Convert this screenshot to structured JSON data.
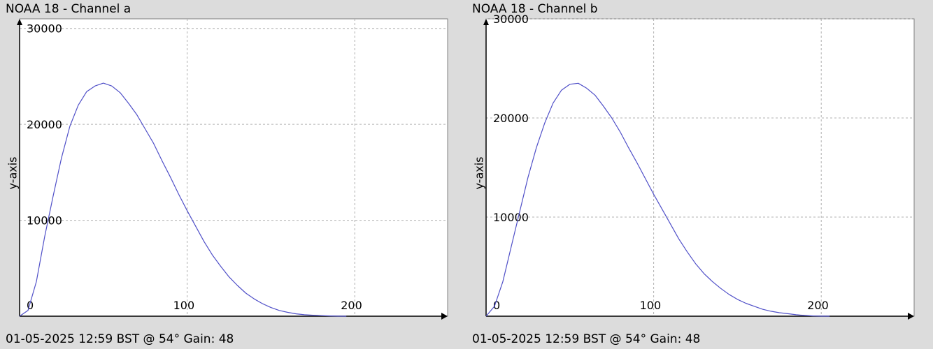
{
  "colors": {
    "background": "#dcdcdc",
    "plot_area": "#ffffff",
    "grid": "#b0b0b0",
    "line": "#5050c8",
    "axis": "#000000"
  },
  "chart_data": [
    {
      "type": "line",
      "title": "NOAA 18 - Channel a",
      "footer": "01-05-2025 12:59 BST @ 54° Gain: 48",
      "xlabel": "",
      "ylabel": "y-axis",
      "xlim": [
        0,
        255
      ],
      "ylim": [
        0,
        31000
      ],
      "x_ticks": [
        0,
        100,
        200
      ],
      "y_ticks": [
        10000,
        20000,
        30000
      ],
      "grid": true,
      "series": [
        {
          "color": "#5050c8",
          "x": [
            0,
            5,
            10,
            15,
            20,
            25,
            30,
            35,
            40,
            45,
            50,
            55,
            60,
            65,
            70,
            75,
            80,
            85,
            90,
            95,
            100,
            105,
            110,
            115,
            120,
            125,
            130,
            135,
            140,
            145,
            150,
            155,
            160,
            165,
            170,
            175,
            180,
            185,
            190,
            195
          ],
          "y": [
            0,
            600,
            3600,
            8300,
            12500,
            16500,
            19800,
            22000,
            23400,
            24000,
            24300,
            24000,
            23300,
            22200,
            21000,
            19500,
            18000,
            16200,
            14500,
            12700,
            11000,
            9400,
            7800,
            6400,
            5200,
            4100,
            3200,
            2400,
            1800,
            1300,
            900,
            600,
            400,
            250,
            150,
            100,
            60,
            30,
            10,
            0
          ]
        }
      ]
    },
    {
      "type": "line",
      "title": "NOAA 18 - Channel b",
      "footer": "01-05-2025 12:59 BST @ 54° Gain: 48",
      "xlabel": "",
      "ylabel": "y-axis",
      "xlim": [
        0,
        255
      ],
      "ylim": [
        0,
        30000
      ],
      "x_ticks": [
        0,
        100,
        200
      ],
      "y_ticks": [
        10000,
        20000,
        30000
      ],
      "grid": true,
      "series": [
        {
          "color": "#5050c8",
          "x": [
            0,
            5,
            10,
            15,
            20,
            25,
            30,
            35,
            40,
            45,
            50,
            55,
            60,
            65,
            70,
            75,
            80,
            85,
            90,
            95,
            100,
            105,
            110,
            115,
            120,
            125,
            130,
            135,
            140,
            145,
            150,
            155,
            160,
            165,
            170,
            175,
            180,
            185,
            190,
            195,
            200,
            205
          ],
          "y": [
            0,
            1000,
            3500,
            7000,
            10500,
            14000,
            17000,
            19500,
            21500,
            22800,
            23400,
            23500,
            23000,
            22300,
            21200,
            20000,
            18600,
            17000,
            15500,
            13900,
            12300,
            10800,
            9300,
            7800,
            6500,
            5300,
            4300,
            3500,
            2800,
            2200,
            1700,
            1300,
            1000,
            700,
            500,
            350,
            250,
            150,
            80,
            30,
            10,
            0
          ]
        }
      ]
    }
  ]
}
